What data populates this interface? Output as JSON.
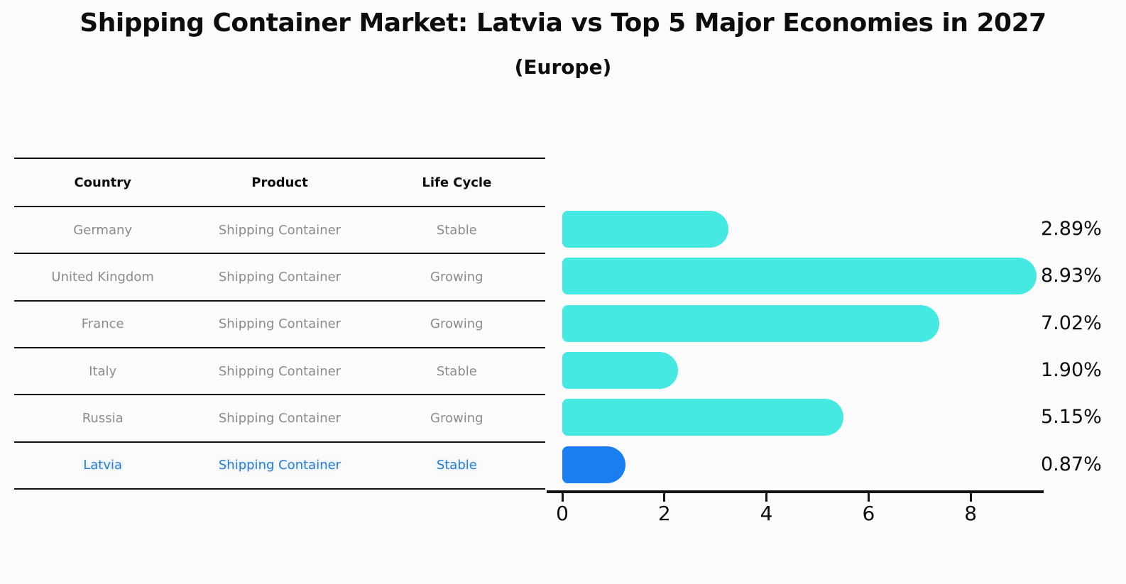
{
  "title": "Shipping Container Market: Latvia vs Top 5 Major Economies in 2027",
  "subtitle": "(Europe)",
  "table": {
    "headers": [
      "Country",
      "Product",
      "Life Cycle"
    ],
    "rows": [
      {
        "country": "Germany",
        "product": "Shipping Container",
        "life_cycle": "Stable"
      },
      {
        "country": "United Kingdom",
        "product": "Shipping Container",
        "life_cycle": "Growing"
      },
      {
        "country": "France",
        "product": "Shipping Container",
        "life_cycle": "Growing"
      },
      {
        "country": "Italy",
        "product": "Shipping Container",
        "life_cycle": "Stable"
      },
      {
        "country": "Russia",
        "product": "Shipping Container",
        "life_cycle": "Growing"
      },
      {
        "country": "Latvia",
        "product": "Shipping Container",
        "life_cycle": "Stable"
      }
    ],
    "highlighted_country": "Latvia"
  },
  "chart_data": {
    "type": "bar",
    "orientation": "horizontal",
    "title": "Shipping Container Market: Latvia vs Top 5 Major Economies in 2027",
    "subtitle": "(Europe)",
    "categories": [
      "Germany",
      "United Kingdom",
      "France",
      "Italy",
      "Russia",
      "Latvia"
    ],
    "values": [
      2.89,
      8.93,
      7.02,
      1.9,
      5.15,
      0.87
    ],
    "value_labels": [
      "2.89%",
      "8.93%",
      "7.02%",
      "1.90%",
      "5.15%",
      "0.87%"
    ],
    "xticks": [
      "0",
      "2",
      "4",
      "6",
      "8"
    ],
    "xtick_values": [
      0,
      2,
      4,
      6,
      8
    ],
    "xlim": [
      0,
      9.4
    ],
    "grid": false,
    "legend": false,
    "bar_color": "#46E8E2",
    "highlight_bar_color": "#1A7DF0",
    "highlight_index": 5
  },
  "colors": {
    "background": "#fcfbfb",
    "bar": "#46E8E2",
    "highlight_bar": "#1A7DF0",
    "highlight_text": "#2B7CCD",
    "table_text": "#8B8B8B",
    "line": "#141414"
  }
}
